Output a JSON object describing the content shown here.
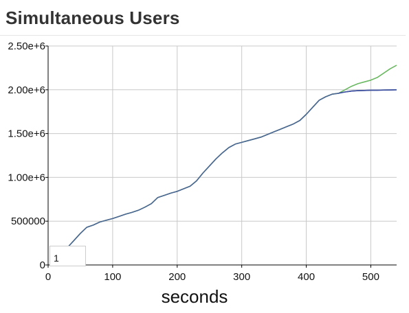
{
  "chart_data": {
    "type": "line",
    "title": "Simultaneous Users",
    "xlabel": "seconds",
    "ylabel": "",
    "xlim": [
      0,
      540
    ],
    "ylim": [
      0,
      2500000
    ],
    "x_ticks": [
      0,
      100,
      200,
      300,
      400,
      500
    ],
    "y_ticks": [
      0,
      500000,
      1000000,
      1500000,
      2000000,
      2500000
    ],
    "x_tick_labels": [
      "0",
      "100",
      "200",
      "300",
      "400",
      "500"
    ],
    "y_tick_labels": [
      "0",
      "500000",
      "1.00e+6",
      "1.50e+6",
      "2.00e+6",
      "2.50e+6"
    ],
    "grid": true,
    "series": [
      {
        "color": "#6ab861",
        "x": [
          30,
          40,
          50,
          60,
          70,
          80,
          90,
          100,
          110,
          120,
          130,
          140,
          150,
          160,
          170,
          180,
          190,
          200,
          210,
          220,
          230,
          240,
          250,
          260,
          270,
          280,
          290,
          300,
          310,
          320,
          330,
          340,
          350,
          360,
          370,
          380,
          390,
          400,
          410,
          420,
          430,
          440,
          450,
          460,
          470,
          480,
          490,
          500,
          510,
          520,
          530,
          540
        ],
        "y": [
          200000,
          280000,
          360000,
          430000,
          455000,
          490000,
          510000,
          530000,
          555000,
          580000,
          600000,
          625000,
          660000,
          700000,
          770000,
          795000,
          820000,
          840000,
          870000,
          900000,
          960000,
          1050000,
          1130000,
          1210000,
          1280000,
          1340000,
          1380000,
          1400000,
          1420000,
          1440000,
          1460000,
          1490000,
          1520000,
          1550000,
          1580000,
          1610000,
          1650000,
          1720000,
          1800000,
          1880000,
          1920000,
          1950000,
          1960000,
          2000000,
          2040000,
          2070000,
          2090000,
          2110000,
          2140000,
          2190000,
          2240000,
          2280000
        ]
      },
      {
        "color": "#3c4fa0",
        "x": [
          30,
          40,
          50,
          60,
          70,
          80,
          90,
          100,
          110,
          120,
          130,
          140,
          150,
          160,
          170,
          180,
          190,
          200,
          210,
          220,
          230,
          240,
          250,
          260,
          270,
          280,
          290,
          300,
          310,
          320,
          330,
          340,
          350,
          360,
          370,
          380,
          390,
          400,
          410,
          420,
          430,
          440,
          450,
          460,
          470,
          480,
          490,
          500,
          510,
          520,
          530,
          540
        ],
        "y": [
          200000,
          280000,
          360000,
          430000,
          455000,
          490000,
          510000,
          530000,
          555000,
          580000,
          600000,
          625000,
          660000,
          700000,
          770000,
          795000,
          820000,
          840000,
          870000,
          900000,
          960000,
          1050000,
          1130000,
          1210000,
          1280000,
          1340000,
          1380000,
          1400000,
          1420000,
          1440000,
          1460000,
          1490000,
          1520000,
          1550000,
          1580000,
          1610000,
          1650000,
          1720000,
          1800000,
          1880000,
          1920000,
          1950000,
          1960000,
          1975000,
          1985000,
          1990000,
          1992000,
          1995000,
          1995000,
          1997000,
          1998000,
          2000000
        ]
      }
    ],
    "overlap_color": "#4a6494",
    "tooltip": {
      "value": "1"
    }
  }
}
